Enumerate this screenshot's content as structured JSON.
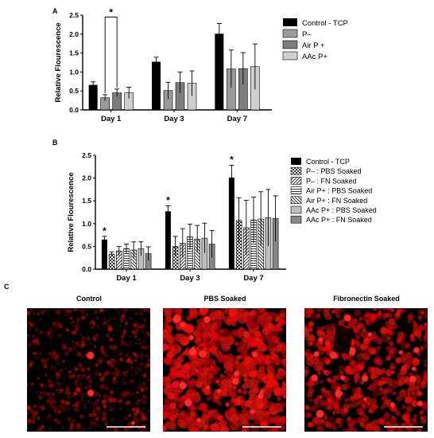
{
  "panels": {
    "A": "A",
    "B": "B",
    "C": "C"
  },
  "chart_data": [
    {
      "type": "bar",
      "panel": "A",
      "ylabel": "Relative Flourescence",
      "ylim": [
        0,
        2.5
      ],
      "yticks": [
        "0.0",
        "0.5",
        "1.0",
        "1.5",
        "2.0",
        "2.5"
      ],
      "categories": [
        "Day 1",
        "Day 3",
        "Day 7"
      ],
      "legend_position": "right",
      "series": [
        {
          "name": "Control - TCP",
          "color": "#000000",
          "pattern": "solid",
          "values": [
            0.66,
            1.27,
            2.01
          ],
          "errors": [
            0.08,
            0.12,
            0.27
          ]
        },
        {
          "name": "P–",
          "color": "#9a9a9a",
          "pattern": "solid",
          "values": [
            0.32,
            0.51,
            1.08
          ],
          "errors": [
            0.08,
            0.22,
            0.5
          ]
        },
        {
          "name": "Air P +",
          "color": "#7d7d7d",
          "pattern": "solid",
          "values": [
            0.45,
            0.72,
            1.09
          ],
          "errors": [
            0.1,
            0.28,
            0.42
          ]
        },
        {
          "name": "AAc P+",
          "color": "#cfcfcf",
          "pattern": "solid",
          "values": [
            0.45,
            0.7,
            1.14
          ],
          "errors": [
            0.15,
            0.33,
            0.6
          ]
        }
      ],
      "significance": [
        {
          "label": "*",
          "from_series": 1,
          "to_series": 2,
          "category": 0,
          "bar_top": 2.45
        }
      ]
    },
    {
      "type": "bar",
      "panel": "B",
      "ylabel": "Relative Flourescence",
      "ylim": [
        0,
        2.5
      ],
      "yticks": [
        "0.0",
        "0.5",
        "1.0",
        "1.5",
        "2.0",
        "2.5"
      ],
      "categories": [
        "Day 1",
        "Day 3",
        "Day 7"
      ],
      "legend_position": "right",
      "series": [
        {
          "name": "Control - TCP",
          "color": "#000000",
          "pattern": "solid",
          "values": [
            0.65,
            1.27,
            2.01
          ],
          "errors": [
            0.07,
            0.12,
            0.27
          ]
        },
        {
          "name": "P– : PBS Soaked",
          "color": "#444444",
          "pattern": "check",
          "values": [
            0.33,
            0.5,
            1.07
          ],
          "errors": [
            0.05,
            0.22,
            0.5
          ]
        },
        {
          "name": "P– : FN Soaked",
          "color": "#444444",
          "pattern": "diag",
          "values": [
            0.4,
            0.57,
            0.91
          ],
          "errors": [
            0.1,
            0.32,
            0.6
          ]
        },
        {
          "name": "Air P+ : PBS Soaked",
          "color": "#444444",
          "pattern": "hlines",
          "values": [
            0.45,
            0.71,
            1.08
          ],
          "errors": [
            0.1,
            0.28,
            0.5
          ]
        },
        {
          "name": "Air P+ : FN Soaked",
          "color": "#444444",
          "pattern": "backdiag",
          "values": [
            0.42,
            0.66,
            1.1
          ],
          "errors": [
            0.18,
            0.3,
            0.6
          ]
        },
        {
          "name": "AAc P+ : PBS Soaked",
          "color": "#bdbdbd",
          "pattern": "light",
          "values": [
            0.45,
            0.68,
            1.13
          ],
          "errors": [
            0.15,
            0.33,
            0.62
          ]
        },
        {
          "name": "AAc P+ : FN Soaked",
          "color": "#888888",
          "pattern": "solid",
          "values": [
            0.34,
            0.55,
            1.11
          ],
          "errors": [
            0.15,
            0.3,
            0.5
          ]
        }
      ],
      "significance": [
        {
          "label": "*",
          "series": 0,
          "category": 0
        },
        {
          "label": "*",
          "series": 0,
          "category": 1
        },
        {
          "label": "*",
          "series": 0,
          "category": 2
        }
      ]
    }
  ],
  "micrographs": [
    {
      "title": "Control",
      "density": "sparse"
    },
    {
      "title": "PBS Soaked",
      "density": "dense"
    },
    {
      "title": "Fibronectin Soaked",
      "density": "medium"
    }
  ],
  "colors": {
    "fluorescence": "#e00000",
    "background": "#000000"
  }
}
